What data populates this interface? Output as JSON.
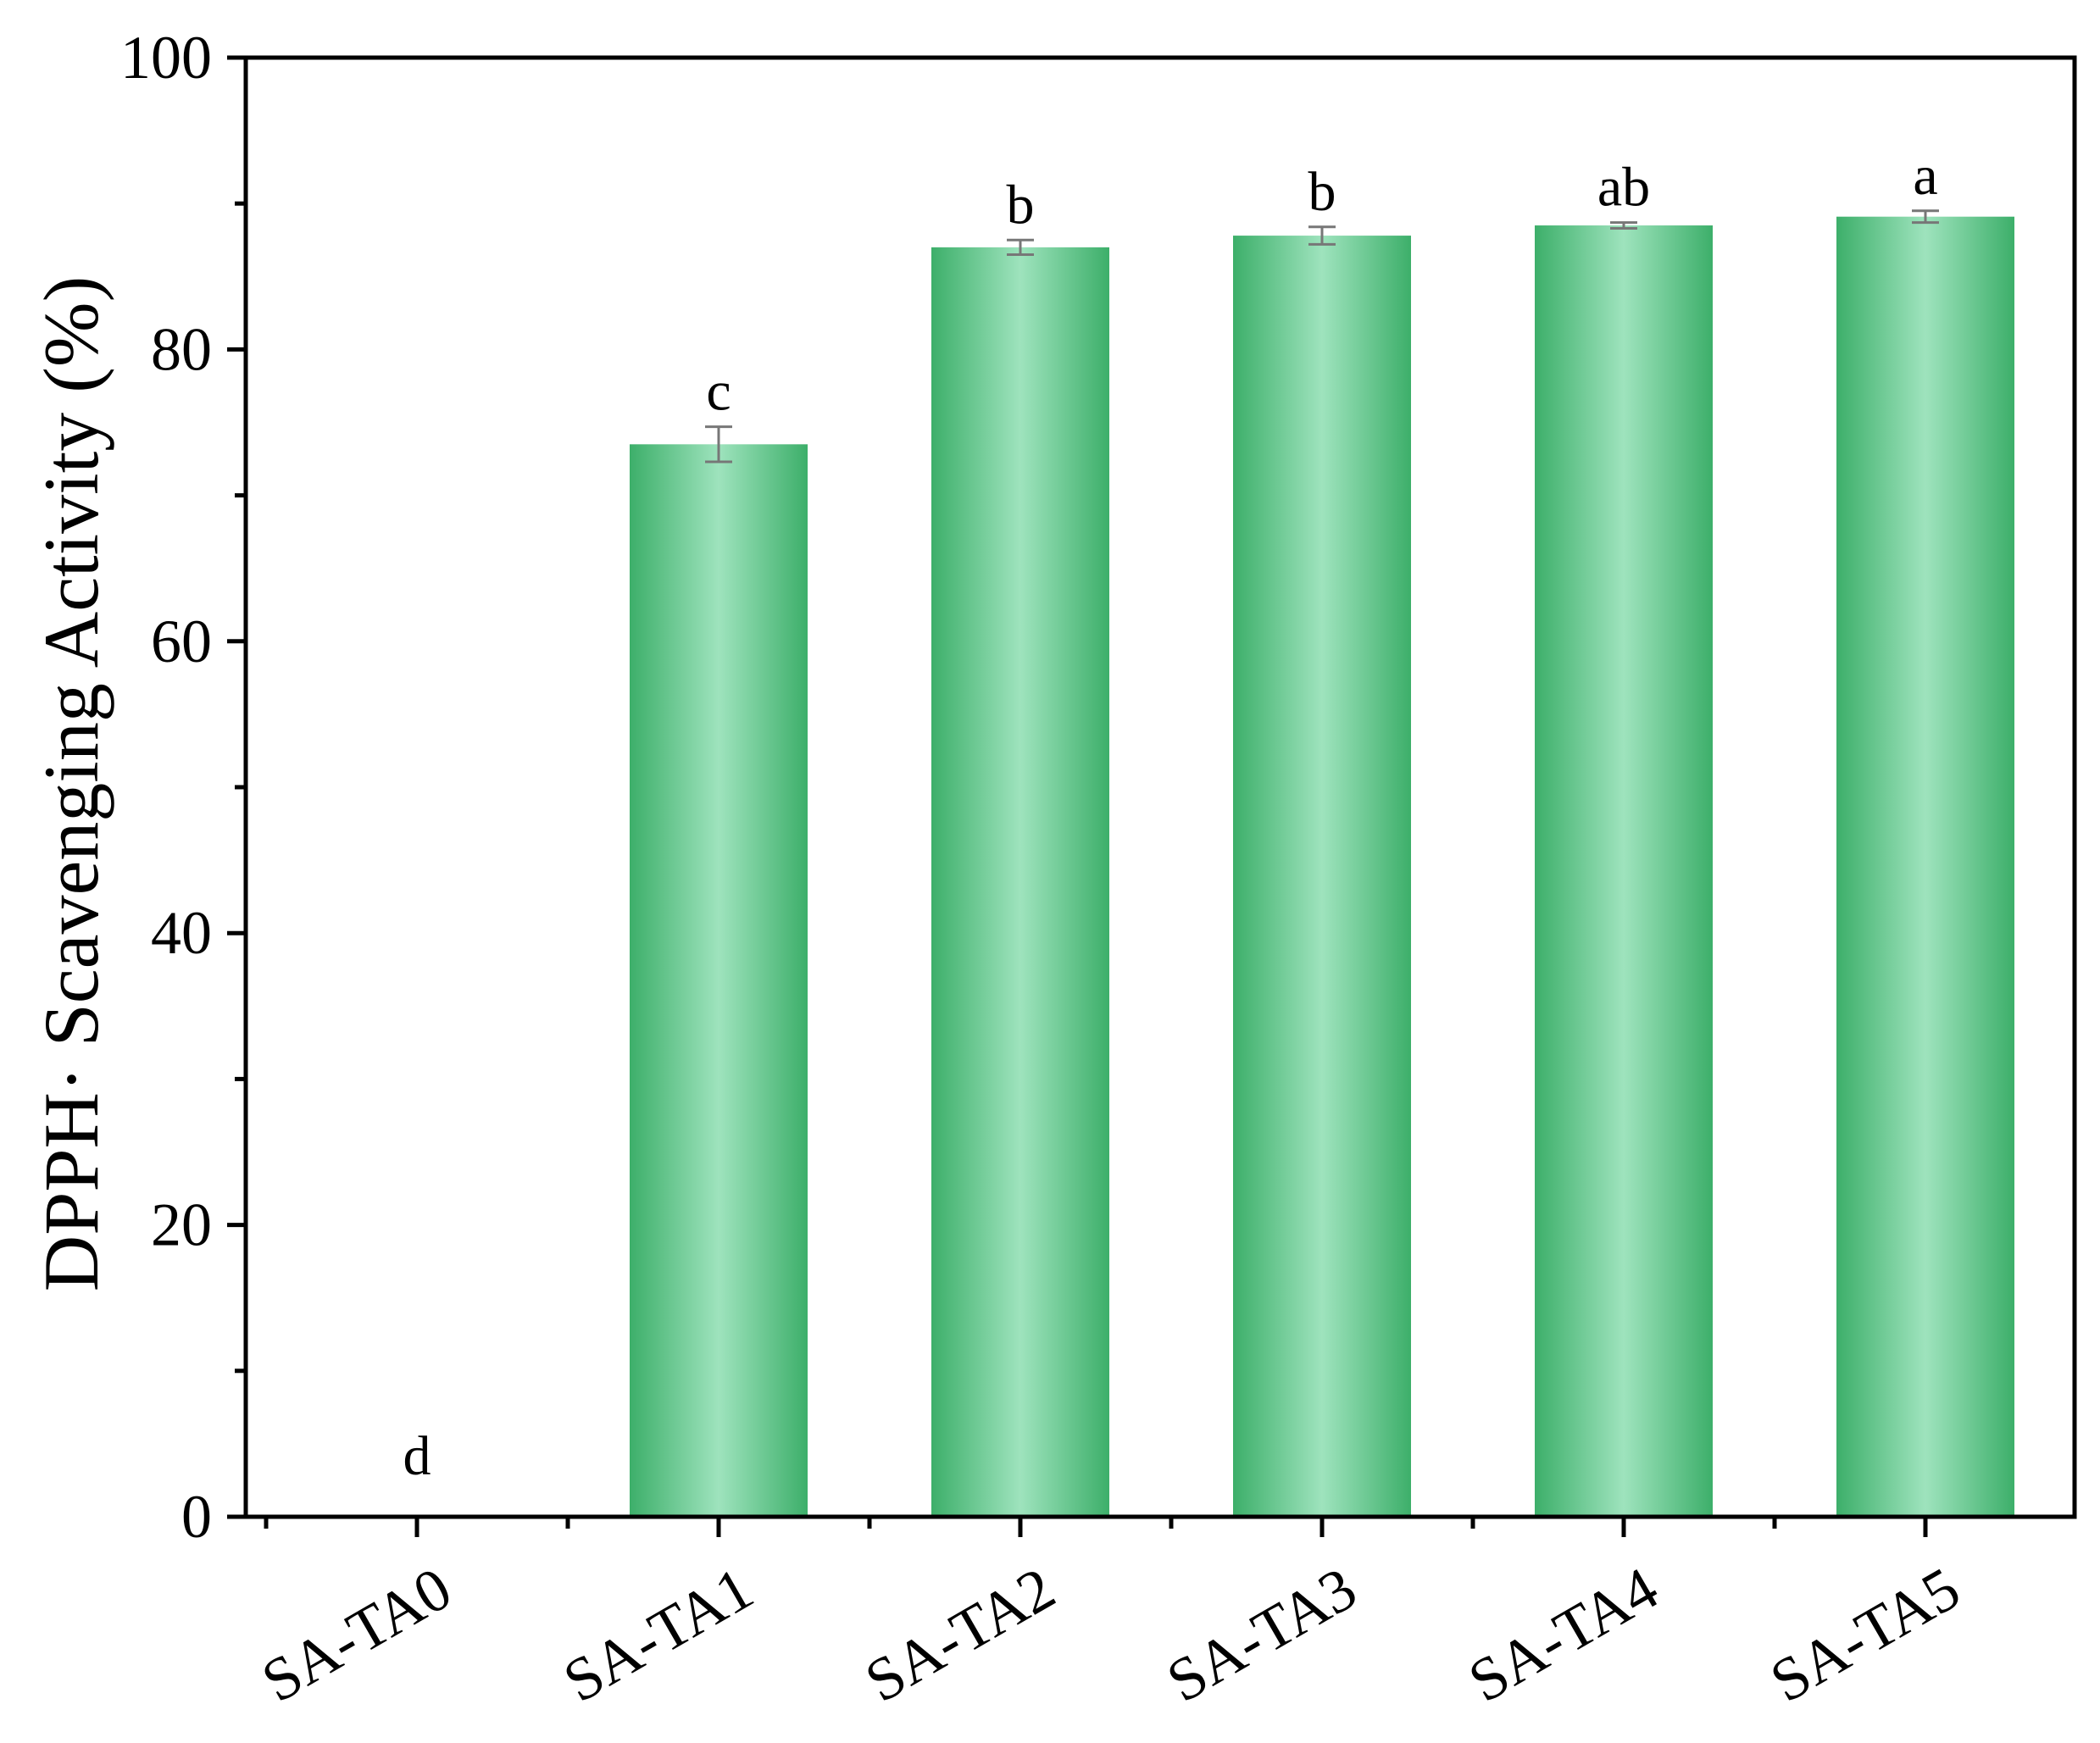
{
  "chart_data": {
    "type": "bar",
    "title": "",
    "xlabel": "",
    "ylabel": "DPPH· Scavenging Activity (%)",
    "ylim": [
      0,
      100
    ],
    "yticks": [
      0,
      20,
      40,
      60,
      80,
      100
    ],
    "categories": [
      "SA-TA0",
      "SA-TA1",
      "SA-TA2",
      "SA-TA3",
      "SA-TA4",
      "SA-TA5"
    ],
    "values": [
      0,
      73.5,
      87.0,
      87.8,
      88.5,
      89.1
    ],
    "errors": [
      0,
      1.2,
      0.5,
      0.6,
      0.2,
      0.4
    ],
    "significance": [
      "d",
      "c",
      "b",
      "b",
      "ab",
      "a"
    ],
    "colors": {
      "bar_edge": "#3daf6a",
      "bar_center": "#9ee3bd",
      "error_bar": "#777777",
      "axis": "#000000"
    },
    "grid": false,
    "legend": "none"
  }
}
